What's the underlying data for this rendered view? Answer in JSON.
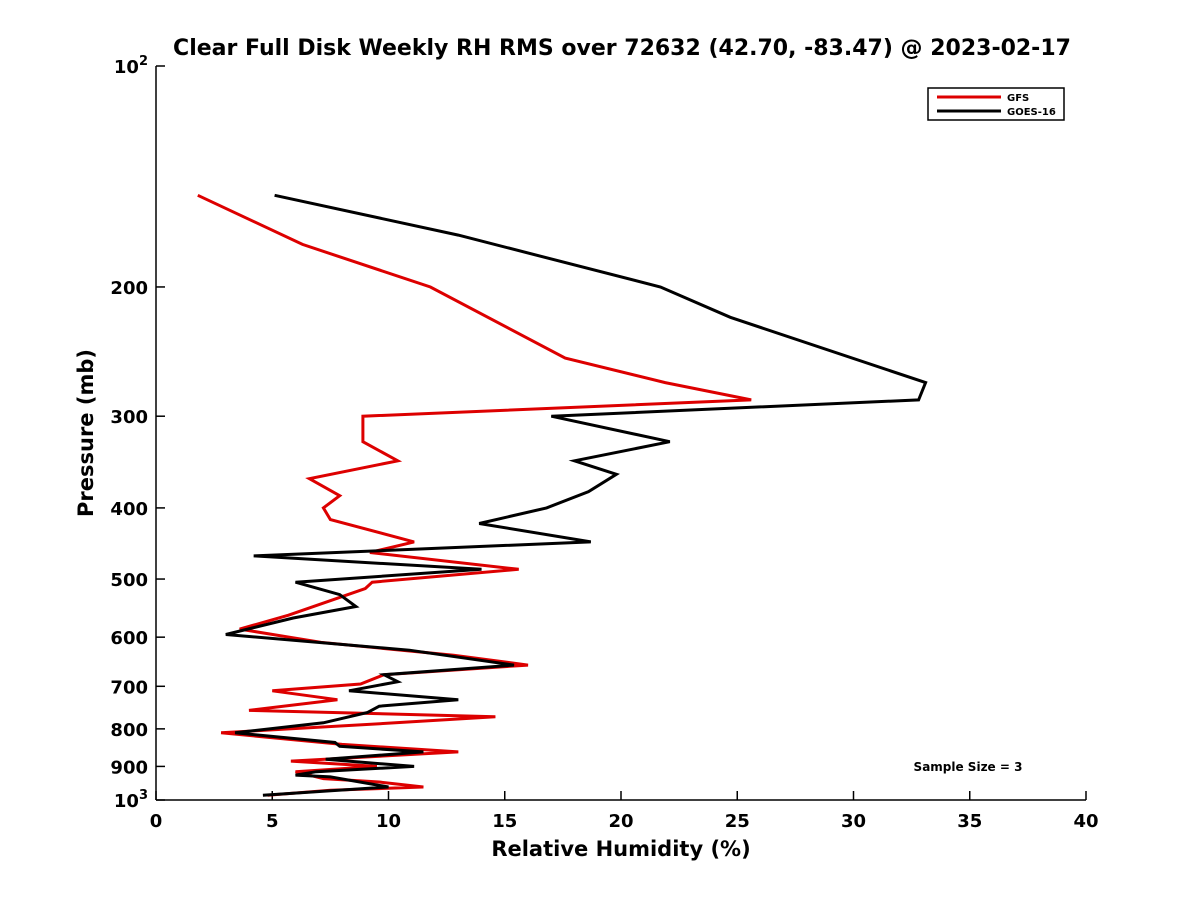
{
  "chart_data": {
    "type": "line",
    "title": "Clear Full Disk Weekly RH RMS over 72632 (42.70, -83.47) @ 2023-02-17",
    "xlabel": "Relative Humidity (%)",
    "ylabel": "Pressure (mb)",
    "xlim": [
      0,
      40
    ],
    "ylim": [
      100,
      1000
    ],
    "yscale": "log",
    "y_reversed": true,
    "xticks": [
      0,
      5,
      10,
      15,
      20,
      25,
      30,
      35,
      40
    ],
    "yticks": [
      {
        "value": 100,
        "label": "10",
        "sup": "2"
      },
      {
        "value": 200,
        "label": "200",
        "sup": ""
      },
      {
        "value": 300,
        "label": "300",
        "sup": ""
      },
      {
        "value": 400,
        "label": "400",
        "sup": ""
      },
      {
        "value": 500,
        "label": "500",
        "sup": ""
      },
      {
        "value": 600,
        "label": "600",
        "sup": ""
      },
      {
        "value": 700,
        "label": "700",
        "sup": ""
      },
      {
        "value": 800,
        "label": "800",
        "sup": ""
      },
      {
        "value": 900,
        "label": "900",
        "sup": ""
      },
      {
        "value": 1000,
        "label": "10",
        "sup": "3"
      }
    ],
    "grid": false,
    "legend_position": "top-right",
    "annotation": "Sample Size = 3",
    "series": [
      {
        "name": "GFS",
        "color": "#dd0000",
        "points": [
          [
            1.8,
            150
          ],
          [
            6.3,
            175
          ],
          [
            11.8,
            200
          ],
          [
            17.6,
            250
          ],
          [
            21.9,
            270
          ],
          [
            25.6,
            285
          ],
          [
            8.9,
            300
          ],
          [
            8.9,
            325
          ],
          [
            10.4,
            345
          ],
          [
            6.6,
            365
          ],
          [
            7.9,
            385
          ],
          [
            7.2,
            400
          ],
          [
            7.5,
            415
          ],
          [
            11.1,
            445
          ],
          [
            9.2,
            460
          ],
          [
            15.6,
            485
          ],
          [
            9.3,
            505
          ],
          [
            9.0,
            515
          ],
          [
            5.7,
            560
          ],
          [
            3.6,
            585
          ],
          [
            7.1,
            610
          ],
          [
            12.8,
            635
          ],
          [
            16.0,
            655
          ],
          [
            9.8,
            675
          ],
          [
            8.8,
            695
          ],
          [
            5.0,
            710
          ],
          [
            7.8,
            730
          ],
          [
            4.0,
            755
          ],
          [
            14.6,
            770
          ],
          [
            10.3,
            785
          ],
          [
            2.8,
            810
          ],
          [
            8.0,
            840
          ],
          [
            13.0,
            860
          ],
          [
            5.8,
            885
          ],
          [
            9.5,
            900
          ],
          [
            6.0,
            915
          ],
          [
            7.2,
            935
          ],
          [
            9.6,
            945
          ],
          [
            11.5,
            960
          ],
          [
            7.5,
            970
          ],
          [
            4.8,
            985
          ]
        ]
      },
      {
        "name": "GOES-16",
        "color": "#000000",
        "points": [
          [
            5.1,
            150
          ],
          [
            13.0,
            170
          ],
          [
            21.7,
            200
          ],
          [
            24.7,
            220
          ],
          [
            33.1,
            270
          ],
          [
            32.8,
            285
          ],
          [
            17.0,
            300
          ],
          [
            22.1,
            325
          ],
          [
            18.0,
            345
          ],
          [
            19.8,
            360
          ],
          [
            18.6,
            380
          ],
          [
            16.8,
            400
          ],
          [
            13.9,
            420
          ],
          [
            18.7,
            445
          ],
          [
            4.2,
            465
          ],
          [
            14.0,
            485
          ],
          [
            6.0,
            505
          ],
          [
            7.9,
            525
          ],
          [
            8.6,
            545
          ],
          [
            5.9,
            565
          ],
          [
            3.0,
            595
          ],
          [
            10.9,
            625
          ],
          [
            15.4,
            655
          ],
          [
            9.8,
            675
          ],
          [
            10.4,
            690
          ],
          [
            8.3,
            710
          ],
          [
            13.0,
            730
          ],
          [
            9.6,
            745
          ],
          [
            9.1,
            760
          ],
          [
            7.2,
            785
          ],
          [
            3.4,
            810
          ],
          [
            7.7,
            835
          ],
          [
            7.9,
            845
          ],
          [
            11.5,
            860
          ],
          [
            7.3,
            880
          ],
          [
            11.1,
            900
          ],
          [
            6.9,
            915
          ],
          [
            6.0,
            925
          ],
          [
            7.5,
            930
          ],
          [
            10.0,
            960
          ],
          [
            4.6,
            985
          ]
        ]
      }
    ]
  }
}
